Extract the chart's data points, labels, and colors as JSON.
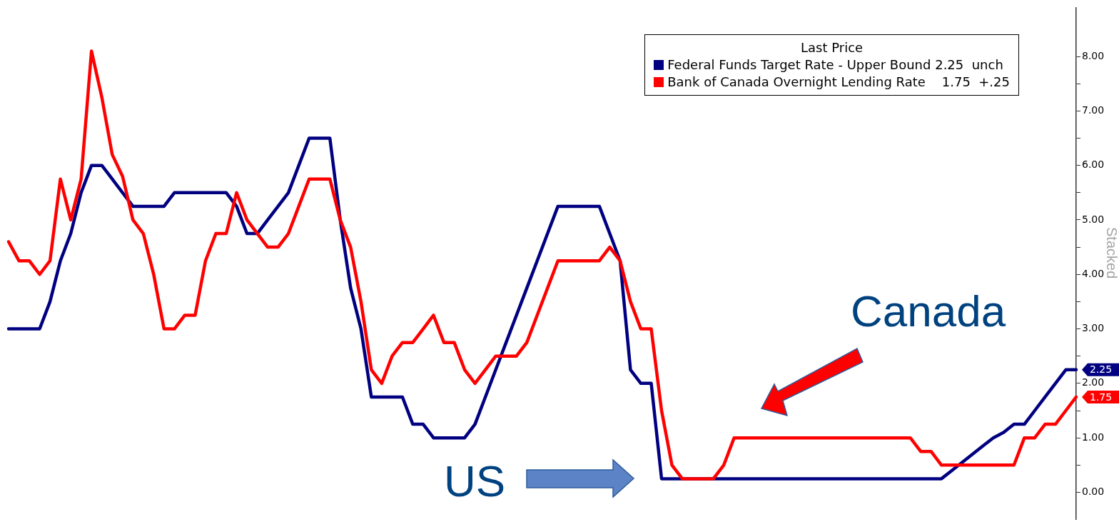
{
  "chart_data": {
    "type": "line",
    "legend_title": "Last Price",
    "legend": "top right",
    "tick_labels": "y",
    "grid": false,
    "marker": "none",
    "line_style": "solid",
    "annotations": [
      "US",
      "Canada",
      "Stacked"
    ],
    "categories": [
      null,
      null,
      null,
      null,
      null,
      null,
      null,
      null,
      null,
      null,
      null,
      null,
      null,
      null,
      null,
      null,
      null,
      null,
      null,
      null,
      null,
      null,
      null,
      null,
      null,
      null,
      null,
      null,
      null,
      null,
      null,
      null,
      null,
      null,
      null,
      null,
      null,
      null,
      null,
      null,
      null,
      null,
      null,
      null,
      null,
      null,
      null,
      null,
      null,
      null,
      null,
      null,
      null,
      null,
      null,
      null,
      null,
      null,
      null,
      null,
      null,
      null,
      null,
      null,
      null,
      null,
      null,
      null,
      null,
      null,
      null,
      null,
      null,
      null,
      null,
      null,
      null,
      null,
      null,
      null,
      null,
      null,
      null,
      null,
      null,
      null,
      null,
      null,
      null,
      null,
      null,
      null,
      null,
      null,
      null,
      null,
      null,
      null,
      null,
      null,
      null,
      null,
      null,
      null
    ],
    "ylim": [
      -0.5,
      8.9
    ],
    "yticks": [
      {
        "value": 0,
        "label": "0.00"
      },
      {
        "value": 0.5,
        "label": null
      },
      {
        "value": 1,
        "label": "1.00"
      },
      {
        "value": 1.5,
        "label": null
      },
      {
        "value": 2,
        "label": "2.00"
      },
      {
        "value": 2.5,
        "label": null
      },
      {
        "value": 3,
        "label": "3.00"
      },
      {
        "value": 3.5,
        "label": null
      },
      {
        "value": 4,
        "label": "4.00"
      },
      {
        "value": 4.5,
        "label": null
      },
      {
        "value": 5,
        "label": "5.00"
      },
      {
        "value": 5.5,
        "label": null
      },
      {
        "value": 6,
        "label": "6.00"
      },
      {
        "value": 6.5,
        "label": null
      },
      {
        "value": 7,
        "label": "7.00"
      },
      {
        "value": 7.5,
        "label": null
      },
      {
        "value": 8,
        "label": "8.00"
      }
    ],
    "series": [
      {
        "name": "Federal Funds Target Rate - Upper Bound 2.25  unch",
        "color": "#000080",
        "values": [
          3,
          3,
          3,
          3,
          3.5,
          4.25,
          4.75,
          5.5,
          6,
          6,
          5.75,
          5.5,
          5.25,
          5.25,
          5.25,
          5.25,
          5.5,
          5.5,
          5.5,
          5.5,
          5.5,
          5.5,
          5.25,
          4.75,
          4.75,
          5,
          5.25,
          5.5,
          6,
          6.5,
          6.5,
          6.5,
          5,
          3.75,
          3,
          1.75,
          1.75,
          1.75,
          1.75,
          1.25,
          1.25,
          1,
          1,
          1,
          1,
          1.25,
          1.75,
          2.25,
          2.75,
          3.25,
          3.75,
          4.25,
          4.75,
          5.25,
          5.25,
          5.25,
          5.25,
          5.25,
          4.75,
          4.25,
          2.25,
          2,
          2,
          0.25,
          0.25,
          0.25,
          0.25,
          0.25,
          0.25,
          0.25,
          0.25,
          0.25,
          0.25,
          0.25,
          0.25,
          0.25,
          0.25,
          0.25,
          0.25,
          0.25,
          0.25,
          0.25,
          0.25,
          0.25,
          0.25,
          0.25,
          0.25,
          0.25,
          0.25,
          0.25,
          0.25,
          0.4,
          0.55,
          0.7,
          0.85,
          1,
          1.1,
          1.25,
          1.25,
          1.5,
          1.75,
          2,
          2.25,
          2.25
        ],
        "value_labels": [
          null,
          null,
          null,
          null,
          null,
          null,
          null,
          null,
          null,
          null,
          null,
          null,
          null,
          null,
          null,
          null,
          null,
          null,
          null,
          null,
          null,
          null,
          null,
          null,
          null,
          null,
          null,
          null,
          null,
          null,
          null,
          null,
          null,
          null,
          null,
          null,
          null,
          null,
          null,
          null,
          null,
          null,
          null,
          null,
          null,
          null,
          null,
          null,
          null,
          null,
          null,
          null,
          null,
          null,
          null,
          null,
          null,
          null,
          null,
          null,
          null,
          null,
          null,
          null,
          null,
          null,
          null,
          null,
          null,
          null,
          null,
          null,
          null,
          null,
          null,
          null,
          null,
          null,
          null,
          null,
          null,
          null,
          null,
          null,
          null,
          null,
          null,
          null,
          null,
          null,
          null,
          null,
          null,
          null,
          null,
          null,
          null,
          null,
          null,
          null,
          null,
          null,
          null,
          "2.25"
        ]
      },
      {
        "name": "Bank of Canada Overnight Lending Rate    1.75  +.25",
        "color": "#ff0000",
        "values": [
          4.6,
          4.25,
          4.25,
          4,
          4.25,
          5.75,
          5,
          5.75,
          8.1,
          7.25,
          6.2,
          5.8,
          5,
          4.75,
          4,
          3,
          3,
          3.25,
          3.25,
          4.25,
          4.75,
          4.75,
          5.5,
          5,
          4.75,
          4.5,
          4.5,
          4.75,
          5.25,
          5.75,
          5.75,
          5.75,
          5,
          4.5,
          3.5,
          2.25,
          2,
          2.5,
          2.75,
          2.75,
          3,
          3.25,
          2.75,
          2.75,
          2.25,
          2,
          2.25,
          2.5,
          2.5,
          2.5,
          2.75,
          3.25,
          3.75,
          4.25,
          4.25,
          4.25,
          4.25,
          4.25,
          4.5,
          4.25,
          3.5,
          3,
          3,
          1.5,
          0.5,
          0.25,
          0.25,
          0.25,
          0.25,
          0.5,
          1,
          1,
          1,
          1,
          1,
          1,
          1,
          1,
          1,
          1,
          1,
          1,
          1,
          1,
          1,
          1,
          1,
          1,
          0.75,
          0.75,
          0.5,
          0.5,
          0.5,
          0.5,
          0.5,
          0.5,
          0.5,
          0.5,
          1,
          1,
          1.25,
          1.25,
          1.5,
          1.75
        ],
        "value_labels": [
          null,
          null,
          null,
          null,
          null,
          null,
          null,
          null,
          null,
          null,
          null,
          null,
          null,
          null,
          null,
          null,
          null,
          null,
          null,
          null,
          null,
          null,
          null,
          null,
          null,
          null,
          null,
          null,
          null,
          null,
          null,
          null,
          null,
          null,
          null,
          null,
          null,
          null,
          null,
          null,
          null,
          null,
          null,
          null,
          null,
          null,
          null,
          null,
          null,
          null,
          null,
          null,
          null,
          null,
          null,
          null,
          null,
          null,
          null,
          null,
          null,
          null,
          null,
          null,
          null,
          null,
          null,
          null,
          null,
          null,
          null,
          null,
          null,
          null,
          null,
          null,
          null,
          null,
          null,
          null,
          null,
          null,
          null,
          null,
          null,
          null,
          null,
          null,
          null,
          null,
          null,
          null,
          null,
          null,
          null,
          null,
          null,
          null,
          null,
          null,
          null,
          null,
          null,
          "1.75"
        ]
      }
    ]
  }
}
